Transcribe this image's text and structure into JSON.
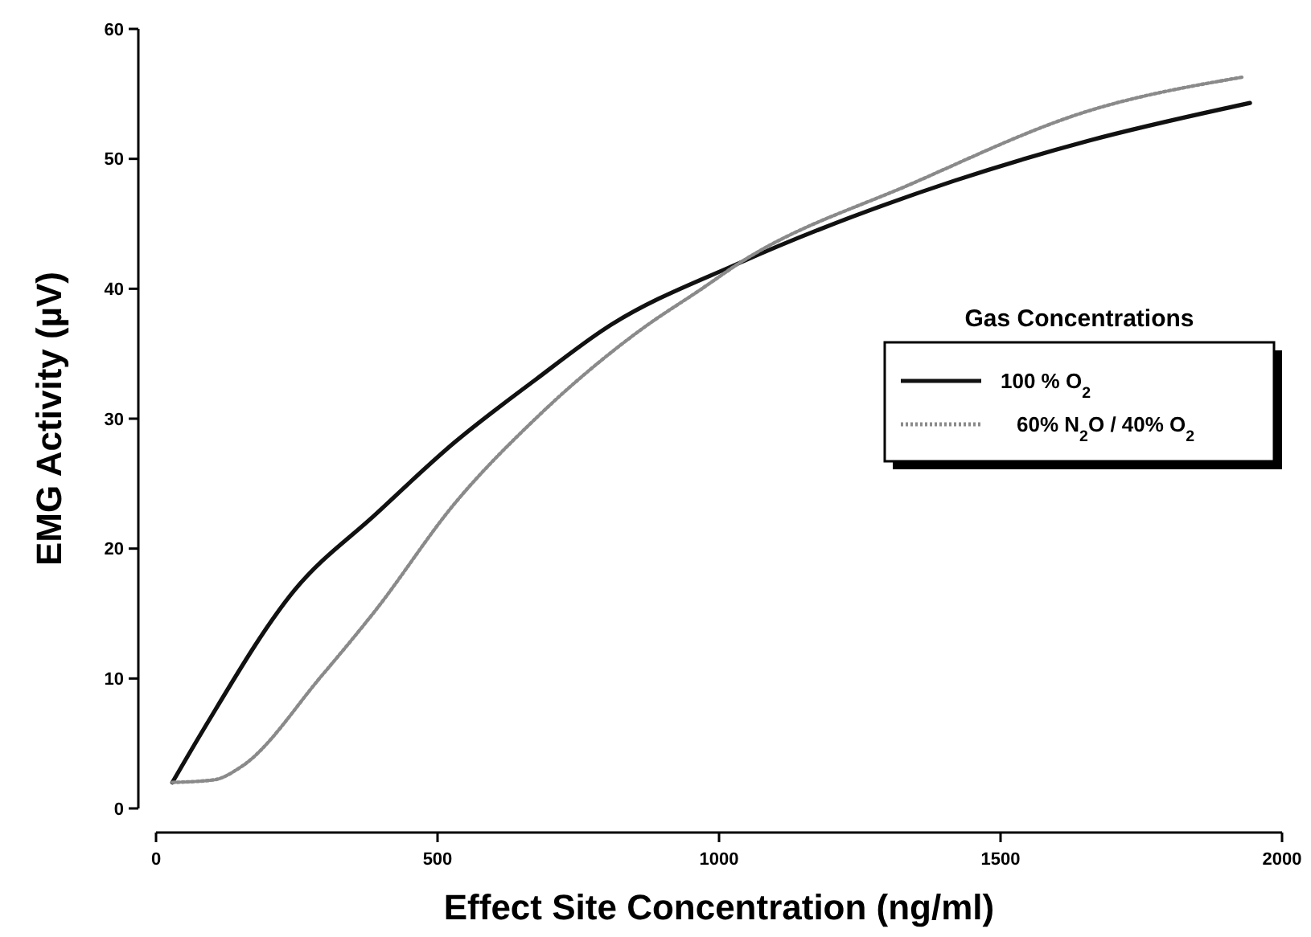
{
  "chart_data": {
    "type": "line",
    "xlabel": "Effect Site Concentration (ng/ml)",
    "ylabel": "EMG Activity (µV)",
    "legend_title": "Gas Concentrations",
    "legend": "right",
    "xlim": [
      0,
      2000
    ],
    "xticks": [
      0,
      500,
      1000,
      1500,
      2000
    ],
    "ylim": [
      0,
      60
    ],
    "yticks": [
      0,
      10,
      20,
      30,
      40,
      50,
      60
    ],
    "grid": false,
    "series": [
      {
        "name": "100 % O$_{2}$",
        "color": "#111111",
        "line_style": "solid",
        "x": [
          29,
          86,
          246,
          389,
          531,
          674,
          800,
          1037,
          1417,
          1657,
          1943
        ],
        "values": [
          2,
          6.2,
          16.8,
          22.6,
          28.2,
          33.0,
          37,
          42,
          48.3,
          51.4,
          54.3
        ]
      },
      {
        "name": "60% N$_{2}$O / 40% O$_{2}$",
        "color": "#8a8a8a",
        "line_style": "dotted",
        "x": [
          29,
          103,
          151,
          294,
          389,
          531,
          674,
          866,
          966,
          1037,
          1343,
          1657,
          1931
        ],
        "values": [
          2,
          2.2,
          3.2,
          10.2,
          15.2,
          23.5,
          30,
          37,
          39.9,
          42,
          48.1,
          53.7,
          56.3
        ]
      }
    ]
  }
}
